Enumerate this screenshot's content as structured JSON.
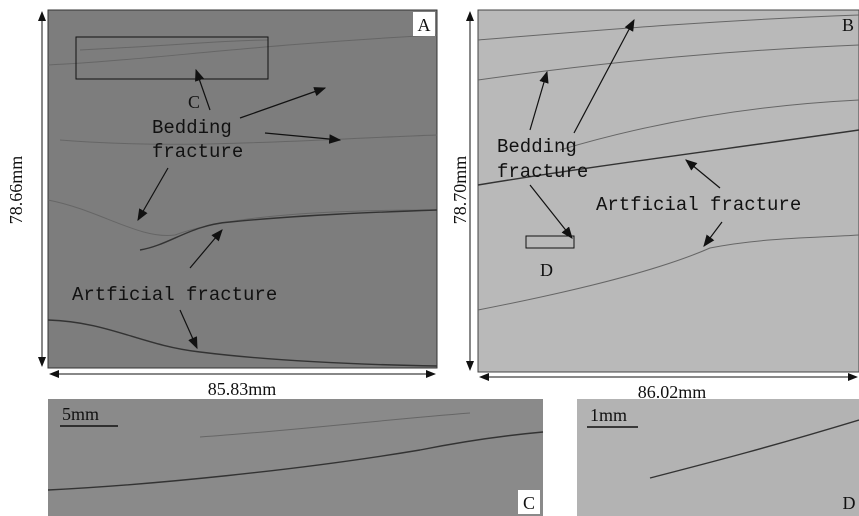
{
  "panels": [
    {
      "label": "A",
      "height": "78.66mm",
      "width": "85.83mm",
      "bedding": [
        "Bedding",
        "fracture"
      ],
      "artificial": "Artficial fracture",
      "inset": "C"
    },
    {
      "label": "B",
      "height": "78.70mm",
      "width": "86.02mm",
      "bedding": [
        "Bedding",
        "fracture"
      ],
      "artificial": "Artficial fracture",
      "inset": "D"
    }
  ],
  "insets": [
    {
      "label": "C",
      "scale": "5mm"
    },
    {
      "label": "D",
      "scale": "1mm"
    }
  ]
}
